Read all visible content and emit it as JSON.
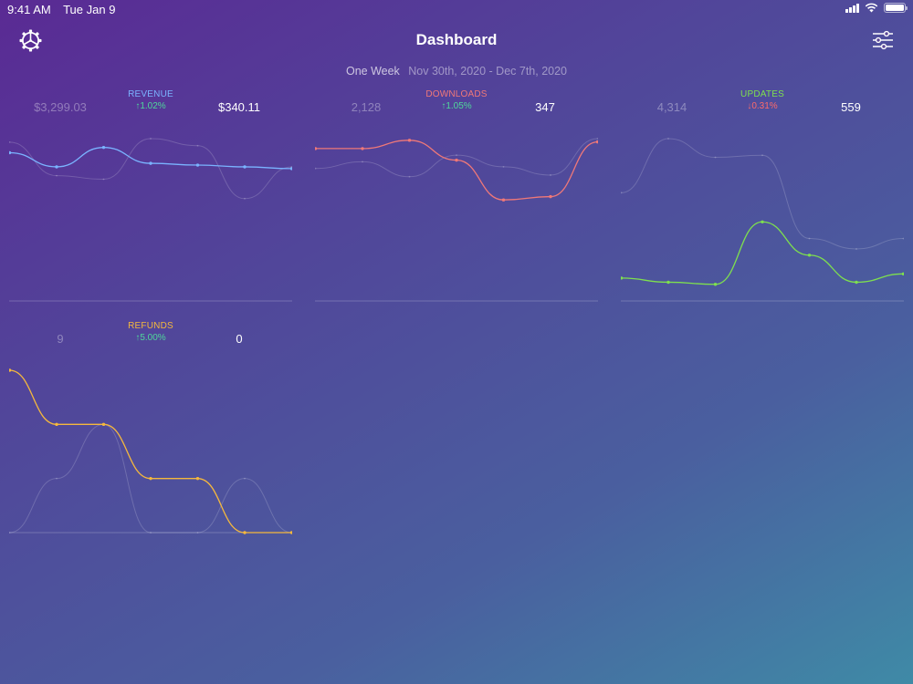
{
  "status_bar": {
    "time": "9:41 AM",
    "date": "Tue Jan 9",
    "icons": [
      "signal-icon",
      "wifi-icon",
      "battery-icon"
    ]
  },
  "nav": {
    "title": "Dashboard",
    "left_icon": "gear-icon",
    "right_icon": "sliders-icon"
  },
  "range": {
    "period": "One Week",
    "dates": "Nov 30th, 2020 - Dec 7th, 2020"
  },
  "colors": {
    "revenue": "#7ab3ff",
    "downloads": "#f07878",
    "updates": "#7ee04e",
    "refunds": "#f5b83d",
    "up": "#4fd89a",
    "down": "#ff6a6a"
  },
  "metrics": [
    {
      "key": "revenue",
      "label": "REVENUE",
      "previous": "$3,299.03",
      "change": "↑1.02%",
      "direction": "up",
      "current": "$340.11"
    },
    {
      "key": "downloads",
      "label": "DOWNLOADS",
      "previous": "2,128",
      "change": "↑1.05%",
      "direction": "up",
      "current": "347"
    },
    {
      "key": "updates",
      "label": "UPDATES",
      "previous": "4,314",
      "change": "↓0.31%",
      "direction": "down",
      "current": "559"
    },
    {
      "key": "refunds",
      "label": "REFUNDS",
      "previous": "9",
      "change": "↑5.00%",
      "direction": "up",
      "current": "0"
    }
  ],
  "chart_data": [
    {
      "type": "line",
      "series": [
        {
          "values": [
            0.84,
            0.76,
            0.87,
            0.78,
            0.77,
            0.76,
            0.75
          ]
        },
        {
          "values": [
            0.9,
            0.71,
            0.69,
            0.92,
            0.88,
            0.58,
            0.76
          ]
        }
      ]
    },
    {
      "type": "line",
      "series": [
        {
          "values": [
            0.92,
            0.92,
            0.97,
            0.85,
            0.61,
            0.63,
            0.96
          ]
        },
        {
          "values": [
            0.8,
            0.84,
            0.75,
            0.88,
            0.81,
            0.76,
            0.98
          ]
        }
      ]
    },
    {
      "type": "line",
      "series": [
        {
          "values": [
            0.11,
            0.09,
            0.08,
            0.38,
            0.22,
            0.09,
            0.13
          ]
        },
        {
          "values": [
            0.52,
            0.78,
            0.69,
            0.7,
            0.3,
            0.25,
            0.3
          ]
        }
      ]
    },
    {
      "type": "line",
      "series": [
        {
          "values": [
            4.2,
            2.8,
            2.8,
            1.4,
            1.4,
            0.0,
            0.0
          ]
        },
        {
          "values": [
            0.0,
            1.4,
            2.8,
            0.0,
            0.0,
            1.4,
            0.0
          ]
        }
      ]
    }
  ]
}
